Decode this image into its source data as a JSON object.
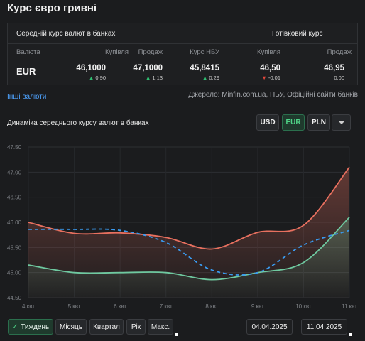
{
  "title": "Курс євро гривні",
  "avg_section": {
    "title": "Середній курс валют в банках"
  },
  "cash_section": {
    "title": "Готівковий курс"
  },
  "columns": {
    "currency": "Валюта",
    "buy": "Купівля",
    "sell": "Продаж",
    "nbu": "Курс НБУ",
    "cash_buy": "Купівля",
    "cash_sell": "Продаж"
  },
  "row": {
    "currency": "EUR",
    "buy": "46,1000",
    "buy_change": "0.90",
    "sell": "47,1000",
    "sell_change": "1.13",
    "nbu": "45,8415",
    "nbu_change": "0.29",
    "cash_buy": "46,50",
    "cash_buy_change": "-0.01",
    "cash_sell": "46,95",
    "cash_sell_change": "0.00"
  },
  "colors": {
    "up": "#2fbf71",
    "down": "#e5483b",
    "sell_line": "#e8705f",
    "buy_line": "#6fc9a0",
    "nbu_line": "#3a9bf0",
    "accent": "#4fd487"
  },
  "other_currencies_link": "Інші валюти",
  "source_text": "Джерело: Minfin.com.ua, НБУ, Офіційні сайти банків",
  "chart_title": "Динаміка середнього курсу валют в банках",
  "currency_buttons": {
    "usd": "USD",
    "eur": "EUR",
    "pln": "PLN",
    "active": "EUR"
  },
  "menu_icon": "chevron-down-icon",
  "period_buttons": {
    "week": "Тиждень",
    "month": "Місяць",
    "quarter": "Квартал",
    "year": "Рік",
    "max": "Макс.",
    "active": "Тиждень"
  },
  "date_from": "04.04.2025",
  "date_to": "11.04.2025",
  "chart_data": {
    "type": "line",
    "categories": [
      "4 квт",
      "5 квт",
      "6 квт",
      "7 квт",
      "8 квт",
      "9 квт",
      "10 квт",
      "11 квт"
    ],
    "ylim": [
      44.5,
      47.5
    ],
    "yticks": [
      "44.50",
      "45.00",
      "45.50",
      "46.00",
      "46.50",
      "47.00",
      "47.50"
    ],
    "grid": true,
    "series": [
      {
        "key": "sell",
        "style": "solid",
        "values": [
          46.0,
          45.78,
          45.79,
          45.7,
          45.47,
          45.8,
          45.94,
          47.1
        ]
      },
      {
        "key": "buy",
        "style": "solid",
        "values": [
          45.15,
          45.0,
          45.0,
          45.0,
          44.86,
          45.0,
          45.2,
          46.1
        ]
      },
      {
        "key": "nbu",
        "style": "dashed",
        "values": [
          45.86,
          45.86,
          45.84,
          45.6,
          45.05,
          45.0,
          45.55,
          45.84
        ]
      }
    ]
  }
}
